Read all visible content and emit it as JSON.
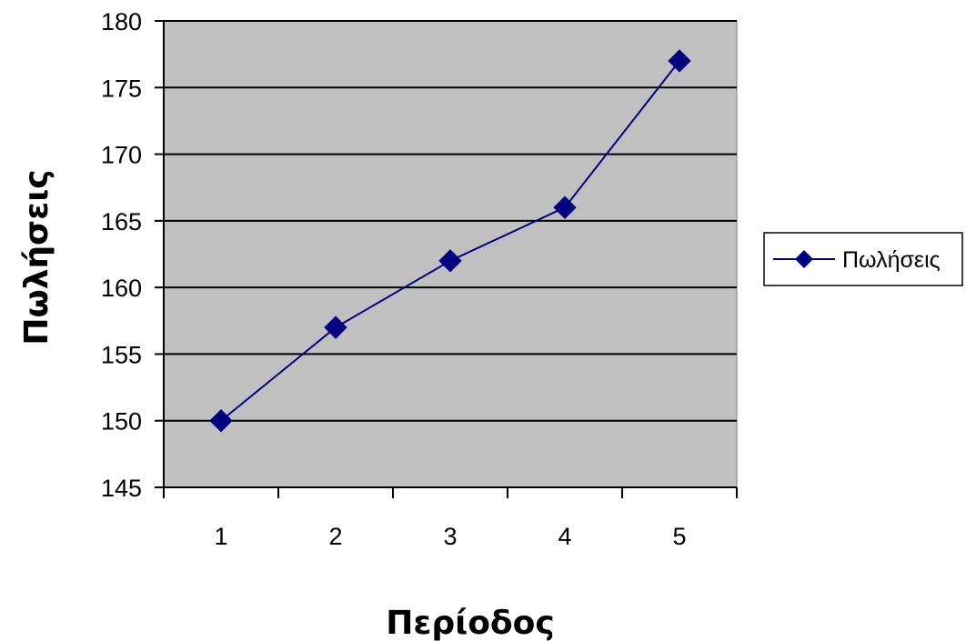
{
  "chart_data": {
    "type": "line",
    "x": [
      1,
      2,
      3,
      4,
      5
    ],
    "categories": [
      "1",
      "2",
      "3",
      "4",
      "5"
    ],
    "series": [
      {
        "name": "Πωλήσεις",
        "values": [
          150,
          157,
          162,
          166,
          177
        ],
        "color": "#000080",
        "marker": "diamond"
      }
    ],
    "title": "",
    "xlabel": "Περίοδος",
    "ylabel": "Πωλήσεις",
    "ylim": [
      145,
      180
    ],
    "yticks": [
      145,
      150,
      155,
      160,
      165,
      170,
      175,
      180
    ],
    "grid": true,
    "plot_background": "#c0c0c0",
    "legend_position": "right"
  }
}
